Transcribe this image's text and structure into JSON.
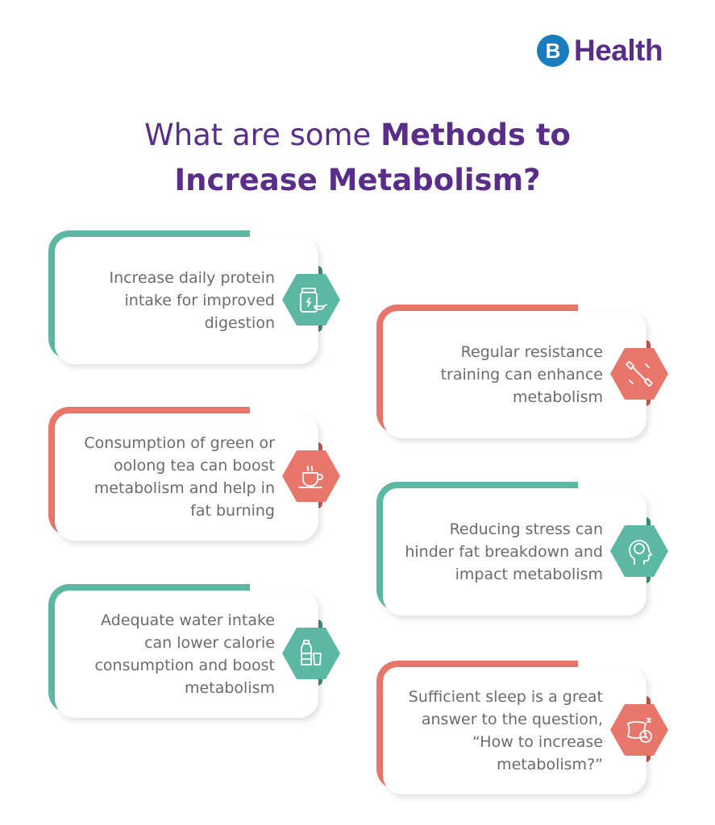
{
  "logo": {
    "mark": "B",
    "text": "Health"
  },
  "title": {
    "regular": "What are some ",
    "bold_line1": "Methods to",
    "bold_line2": "Increase Metabolism?"
  },
  "colors": {
    "teal": "#5cb8a3",
    "red": "#e8766a",
    "purple": "#5a2d8a",
    "logo_blue": "#1a7bbf"
  },
  "cards": [
    {
      "text": "Increase daily protein intake for improved digestion",
      "color": "teal",
      "icon": "protein-jar-icon"
    },
    {
      "text": "Regular resistance training can enhance metabolism",
      "color": "red",
      "icon": "dumbbell-icon"
    },
    {
      "text": "Consumption of green or oolong tea can boost metabolism and help in fat burning",
      "color": "red",
      "icon": "tea-cup-icon"
    },
    {
      "text": "Reducing stress can hinder fat breakdown and impact metabolism",
      "color": "teal",
      "icon": "head-brain-icon"
    },
    {
      "text": "Adequate water intake can lower calorie consumption and boost metabolism",
      "color": "teal",
      "icon": "water-bottle-icon"
    },
    {
      "text": "Sufficient sleep is a great answer to the question, “How to increase metabolism?”",
      "color": "red",
      "icon": "pillow-clock-icon"
    }
  ]
}
